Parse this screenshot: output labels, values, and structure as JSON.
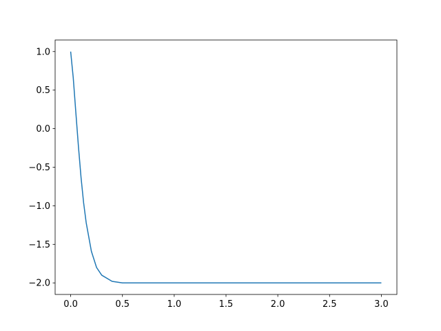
{
  "chart_data": {
    "type": "line",
    "title": "",
    "xlabel": "",
    "ylabel": "",
    "xlim": [
      -0.15,
      3.15
    ],
    "ylim": [
      -2.15,
      1.15
    ],
    "grid": false,
    "x_ticks": [
      "0.0",
      "0.5",
      "1.0",
      "1.5",
      "2.0",
      "2.5",
      "3.0"
    ],
    "y_ticks": [
      "−2.0",
      "−1.5",
      "−1.0",
      "−0.5",
      "0.0",
      "0.5",
      "1.0"
    ],
    "series": [
      {
        "color": "#1f77b4",
        "x": [
          0,
          0.025,
          0.05,
          0.075,
          0.1,
          0.125,
          0.15,
          0.2,
          0.25,
          0.3,
          0.4,
          0.5,
          0.6,
          1.0,
          1.5,
          2.0,
          2.5,
          3.0
        ],
        "y": [
          1.0,
          0.66,
          0.21,
          -0.23,
          -0.63,
          -0.96,
          -1.22,
          -1.59,
          -1.8,
          -1.9,
          -1.98,
          -2.0,
          -2.0,
          -2.0,
          -2.0,
          -2.0,
          -2.0,
          -2.0
        ]
      }
    ]
  }
}
